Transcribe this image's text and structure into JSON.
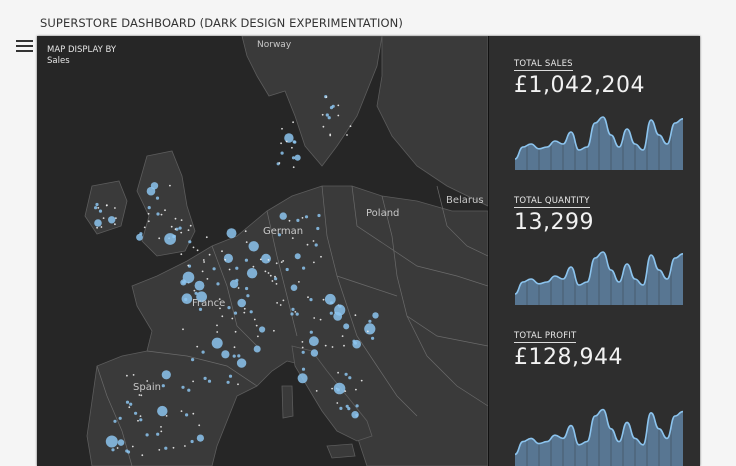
{
  "header": {
    "title": "SUPERSTORE DASHBOARD (DARK DESIGN EXPERIMENTATION)"
  },
  "menu": {
    "icon": "hamburger-menu-icon"
  },
  "map": {
    "title": "MAP DISPLAY BY",
    "subtitle": "Sales",
    "labels": {
      "norway": "Norway",
      "poland": "Poland",
      "belarus": "Belarus",
      "germany": "German",
      "france": "France",
      "spain": "Spain"
    },
    "colors": {
      "background": "#262626",
      "land": "#3a3a3a",
      "dot": "#8cc4ee",
      "white_dot": "#f0f0f0"
    }
  },
  "kpis": [
    {
      "label": "TOTAL SALES",
      "value": "£1,042,204"
    },
    {
      "label": "TOTAL QUANTITY",
      "value": "13,299"
    },
    {
      "label": "TOTAL PROFIT",
      "value": "£128,944"
    }
  ],
  "spark_colors": {
    "line": "#8cc4ee",
    "fill": "#587692"
  }
}
